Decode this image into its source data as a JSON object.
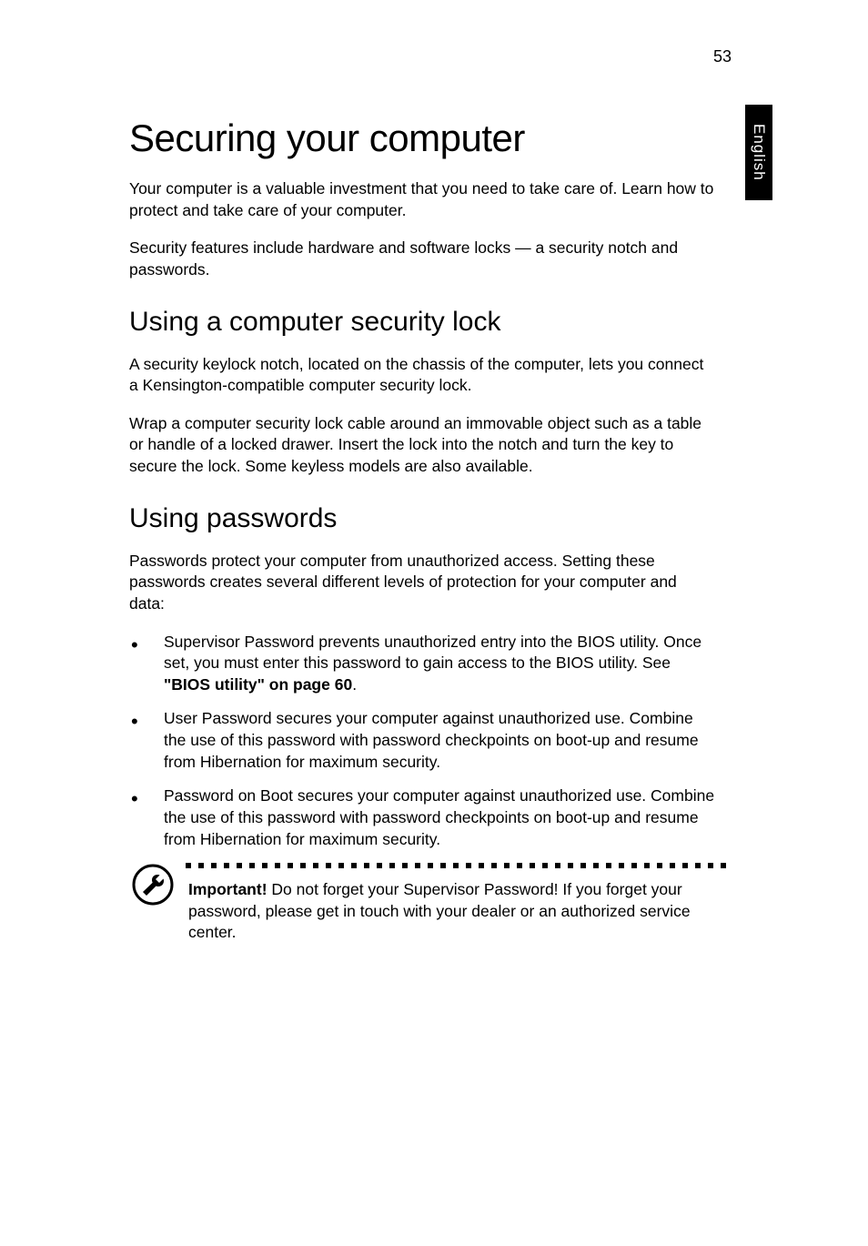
{
  "page_number": "53",
  "side_tab": "English",
  "h1": "Securing your computer",
  "intro_p1": "Your computer is a valuable investment that you need to take care of. Learn how to protect and take care of your computer.",
  "intro_p2": "Security features include hardware and software locks — a security notch and passwords.",
  "section1_heading": "Using a computer security lock",
  "section1_p1": "A security keylock notch, located on the chassis of the computer, lets you connect a Kensington-compatible computer security lock.",
  "section1_p2": "Wrap a computer security lock cable around an immovable object such as a table or handle of a locked drawer. Insert the lock into the notch and turn the key to secure the lock. Some keyless models are also available.",
  "section2_heading": "Using passwords",
  "section2_intro": "Passwords protect your computer from unauthorized access. Setting these passwords creates several different levels of protection for your computer and data:",
  "bullets": [
    {
      "pre": "Supervisor Password prevents unauthorized entry into the BIOS utility. Once set, you must enter this password to gain access to the BIOS utility. See ",
      "bold": "\"BIOS utility\" on page 60",
      "post": "."
    },
    {
      "pre": "User Password secures your computer against unauthorized use. Combine the use of this password with password checkpoints on boot-up and resume from Hibernation for maximum security.",
      "bold": "",
      "post": ""
    },
    {
      "pre": "Password on Boot secures your computer against unauthorized use. Combine the use of this password with password checkpoints on boot-up and resume from Hibernation for maximum security.",
      "bold": "",
      "post": ""
    }
  ],
  "note_bold": "Important!",
  "note_text": " Do not forget your Supervisor Password! If you forget your password, please get in touch with your dealer or an authorized service center.",
  "icon": {
    "circle_stroke": "#000000",
    "circle_stroke_width": 3,
    "circle_radius": 22,
    "wrench_color": "#000000"
  },
  "dot_count": 43
}
